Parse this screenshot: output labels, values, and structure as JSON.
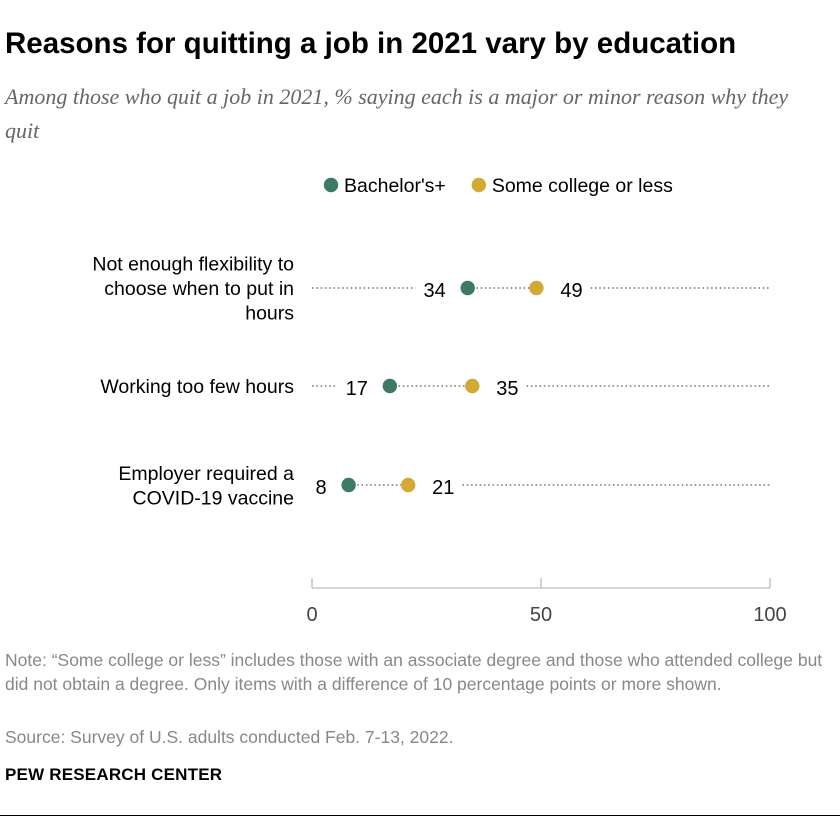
{
  "title": "Reasons for quitting a job in 2021 vary by education",
  "subtitle": "Among those who quit a job in 2021, % saying each is a major or minor reason why they quit",
  "chart_data": {
    "type": "scatter",
    "subtype": "dot-plot",
    "categories": [
      [
        "Not enough flexibility to",
        "choose when to put in",
        "hours"
      ],
      [
        "Working too few hours"
      ],
      [
        "Employer required a",
        "COVID-19 vaccine"
      ]
    ],
    "series": [
      {
        "name": "Bachelor's+",
        "color": "#3c7a63",
        "values": [
          34,
          17,
          8
        ]
      },
      {
        "name": "Some college or less",
        "color": "#d3a833",
        "values": [
          49,
          35,
          21
        ]
      }
    ],
    "xlim": [
      0,
      100
    ],
    "xticks": [
      0,
      50,
      100
    ],
    "legend_position": "top",
    "grid": false
  },
  "note": "Note: “Some college or less” includes those with an associate degree and those who attended college but did not obtain a degree. Only items with a difference of 10 percentage points or more shown.",
  "source": "Source: Survey of U.S. adults conducted Feb. 7-13, 2022.",
  "brand": "PEW RESEARCH CENTER"
}
